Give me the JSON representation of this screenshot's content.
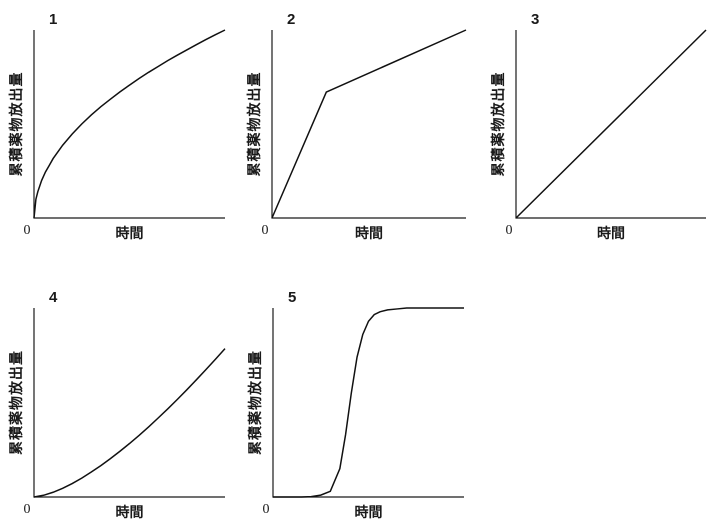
{
  "chart_data": [
    {
      "panel": "1",
      "type": "line",
      "xlabel": "時間",
      "ylabel": "累積薬物放出量",
      "origin_label": "0",
      "xlim": [
        0,
        1
      ],
      "ylim": [
        0,
        1
      ],
      "series": [
        {
          "x": [
            0,
            0.01,
            0.02,
            0.04,
            0.06,
            0.08,
            0.1,
            0.15,
            0.2,
            0.25,
            0.3,
            0.35,
            0.4,
            0.45,
            0.5,
            0.55,
            0.6,
            0.65,
            0.7,
            0.75,
            0.8,
            0.85,
            0.9,
            0.95,
            1.0
          ],
          "y": [
            0,
            0.1,
            0.14,
            0.2,
            0.245,
            0.28,
            0.316,
            0.387,
            0.447,
            0.5,
            0.548,
            0.592,
            0.632,
            0.671,
            0.707,
            0.742,
            0.775,
            0.806,
            0.837,
            0.866,
            0.894,
            0.922,
            0.949,
            0.975,
            1.0
          ]
        }
      ]
    },
    {
      "panel": "2",
      "type": "line",
      "xlabel": "時間",
      "ylabel": "累積薬物放出量",
      "origin_label": "0",
      "xlim": [
        0,
        1
      ],
      "ylim": [
        0,
        1
      ],
      "series": [
        {
          "x": [
            0,
            0.28,
            1.0
          ],
          "y": [
            0,
            0.67,
            1.0
          ]
        }
      ]
    },
    {
      "panel": "3",
      "type": "line",
      "xlabel": "時間",
      "ylabel": "累積薬物放出量",
      "origin_label": "0",
      "xlim": [
        0,
        1
      ],
      "ylim": [
        0,
        1
      ],
      "series": [
        {
          "x": [
            0,
            1.0
          ],
          "y": [
            0,
            1.0
          ]
        }
      ]
    },
    {
      "panel": "4",
      "type": "line",
      "xlabel": "時間",
      "ylabel": "累積薬物放出量",
      "origin_label": "0",
      "xlim": [
        0,
        1
      ],
      "ylim": [
        0,
        1
      ],
      "series": [
        {
          "x": [
            0,
            0.05,
            0.1,
            0.15,
            0.2,
            0.25,
            0.3,
            0.35,
            0.4,
            0.45,
            0.5,
            0.55,
            0.6,
            0.65,
            0.7,
            0.75,
            0.8,
            0.85,
            0.9,
            0.95,
            1.0
          ],
          "y": [
            0,
            0.009,
            0.025,
            0.046,
            0.071,
            0.1,
            0.132,
            0.166,
            0.203,
            0.242,
            0.283,
            0.326,
            0.371,
            0.418,
            0.466,
            0.516,
            0.567,
            0.62,
            0.674,
            0.729,
            0.785
          ]
        }
      ]
    },
    {
      "panel": "5",
      "type": "line",
      "xlabel": "時間",
      "ylabel": "累積薬物放出量",
      "origin_label": "0",
      "xlim": [
        0,
        1
      ],
      "ylim": [
        0,
        1
      ],
      "series": [
        {
          "x": [
            0,
            0.1,
            0.15,
            0.2,
            0.25,
            0.3,
            0.35,
            0.38,
            0.41,
            0.44,
            0.47,
            0.5,
            0.53,
            0.56,
            0.6,
            0.65,
            0.7,
            0.8,
            0.9,
            1.0
          ],
          "y": [
            0,
            0,
            0,
            0.002,
            0.01,
            0.03,
            0.15,
            0.33,
            0.55,
            0.74,
            0.86,
            0.93,
            0.965,
            0.98,
            0.99,
            0.995,
            1.0,
            1.0,
            1.0,
            1.0
          ]
        }
      ]
    }
  ]
}
